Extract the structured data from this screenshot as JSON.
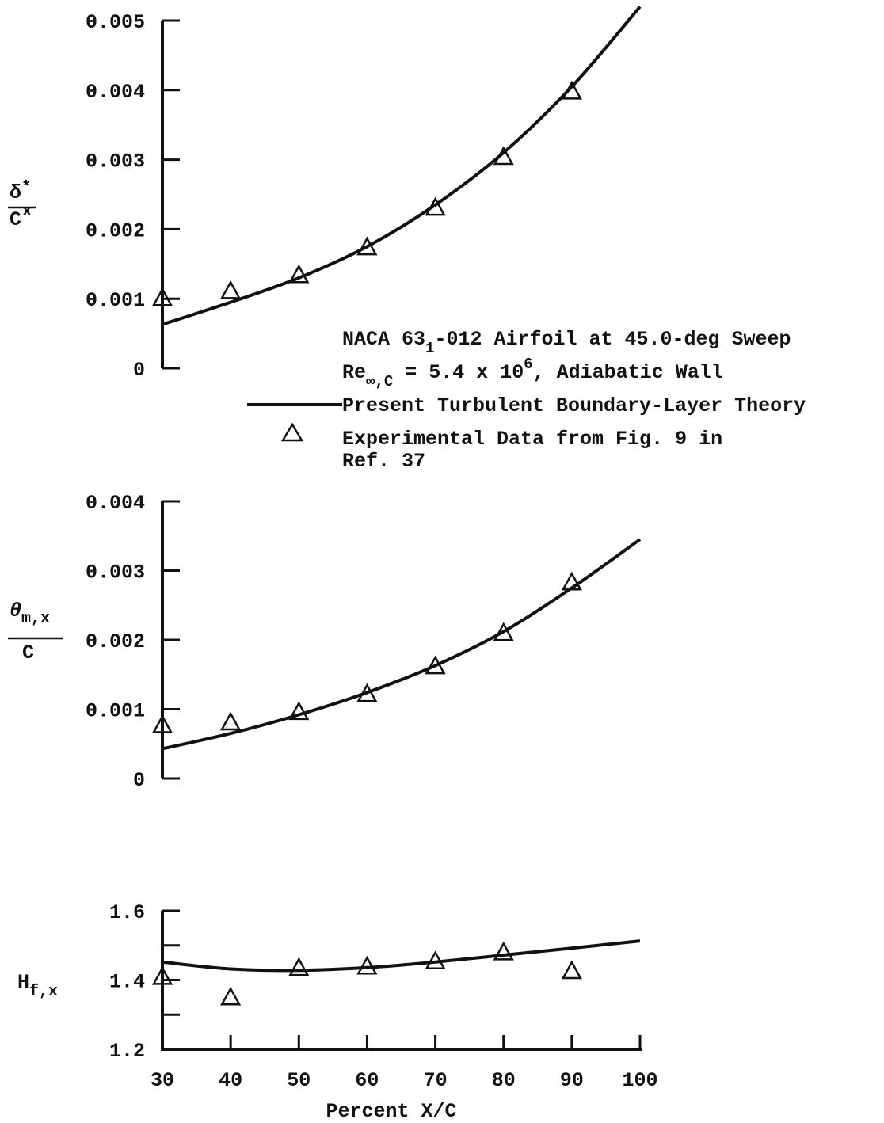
{
  "chart_data": [
    {
      "type": "line",
      "id": "displacement",
      "ylabel_parts": {
        "top": "δ",
        "sup": "*",
        "sub": "x",
        "bottom": "C"
      },
      "ylim": [
        0,
        0.005
      ],
      "yticks": [
        "0",
        "0.001",
        "0.002",
        "0.003",
        "0.004",
        "0.005"
      ],
      "ytick_values": [
        0,
        0.001,
        0.002,
        0.003,
        0.004,
        0.005
      ],
      "series": [
        {
          "kind": "theory",
          "x": [
            30,
            40,
            50,
            60,
            70,
            80,
            90,
            100
          ],
          "values": [
            0.00063,
            0.00095,
            0.0013,
            0.00175,
            0.00235,
            0.0031,
            0.00405,
            0.0052
          ]
        },
        {
          "kind": "experiment",
          "x": [
            30,
            40,
            50,
            60,
            70,
            80,
            90
          ],
          "values": [
            0.001,
            0.0011,
            0.00133,
            0.00173,
            0.0023,
            0.00303,
            0.00397
          ]
        }
      ]
    },
    {
      "type": "line",
      "id": "momentum",
      "ylabel_parts": {
        "top": "θ",
        "sub": "m,x",
        "bottom": "C"
      },
      "ylim": [
        0,
        0.004
      ],
      "yticks": [
        "0",
        "0.001",
        "0.002",
        "0.003",
        "0.004"
      ],
      "ytick_values": [
        0,
        0.001,
        0.002,
        0.003,
        0.004
      ],
      "series": [
        {
          "kind": "theory",
          "x": [
            30,
            40,
            50,
            60,
            70,
            80,
            90,
            100
          ],
          "values": [
            0.00043,
            0.00065,
            0.00092,
            0.00124,
            0.00163,
            0.00212,
            0.00275,
            0.00345
          ]
        },
        {
          "kind": "experiment",
          "x": [
            30,
            40,
            50,
            60,
            70,
            80,
            90
          ],
          "values": [
            0.00076,
            0.0008,
            0.00095,
            0.00121,
            0.00161,
            0.00209,
            0.00282
          ]
        }
      ]
    },
    {
      "type": "line",
      "id": "shape-factor",
      "ylabel_parts": {
        "top": "H",
        "sub": "f,x"
      },
      "ylim": [
        1.2,
        1.6
      ],
      "yticks": [
        "1.2",
        "1.4",
        "1.6"
      ],
      "ytick_values": [
        1.2,
        1.4,
        1.6
      ],
      "minor_ytick_values": [
        1.3,
        1.5
      ],
      "xticks": [
        "30",
        "40",
        "50",
        "60",
        "70",
        "80",
        "90",
        "100"
      ],
      "xtick_values": [
        30,
        40,
        50,
        60,
        70,
        80,
        90,
        100
      ],
      "xlabel": "Percent X/C",
      "series": [
        {
          "kind": "theory",
          "x": [
            30,
            40,
            50,
            60,
            70,
            80,
            90,
            100
          ],
          "values": [
            1.452,
            1.432,
            1.428,
            1.436,
            1.452,
            1.472,
            1.492,
            1.513
          ]
        },
        {
          "kind": "experiment",
          "x": [
            30,
            40,
            50,
            60,
            70,
            80,
            90
          ],
          "values": [
            1.407,
            1.348,
            1.433,
            1.437,
            1.452,
            1.478,
            1.424
          ]
        }
      ]
    }
  ],
  "xlim": [
    30,
    100
  ],
  "legend": {
    "title_line1_a": "NACA 63",
    "title_line1_sub": "1",
    "title_line1_b": "-012 Airfoil at 45.0-deg Sweep",
    "title_line2_a": "Re",
    "title_line2_sub": "∞,C",
    "title_line2_b": " = 5.4 x 10",
    "title_line2_sup": "6",
    "title_line2_c": ", Adiabatic Wall",
    "theory_label": "Present Turbulent Boundary-Layer Theory",
    "experiment_label_line1": "Experimental Data from Fig. 9 in",
    "experiment_label_line2": "Ref. 37"
  }
}
